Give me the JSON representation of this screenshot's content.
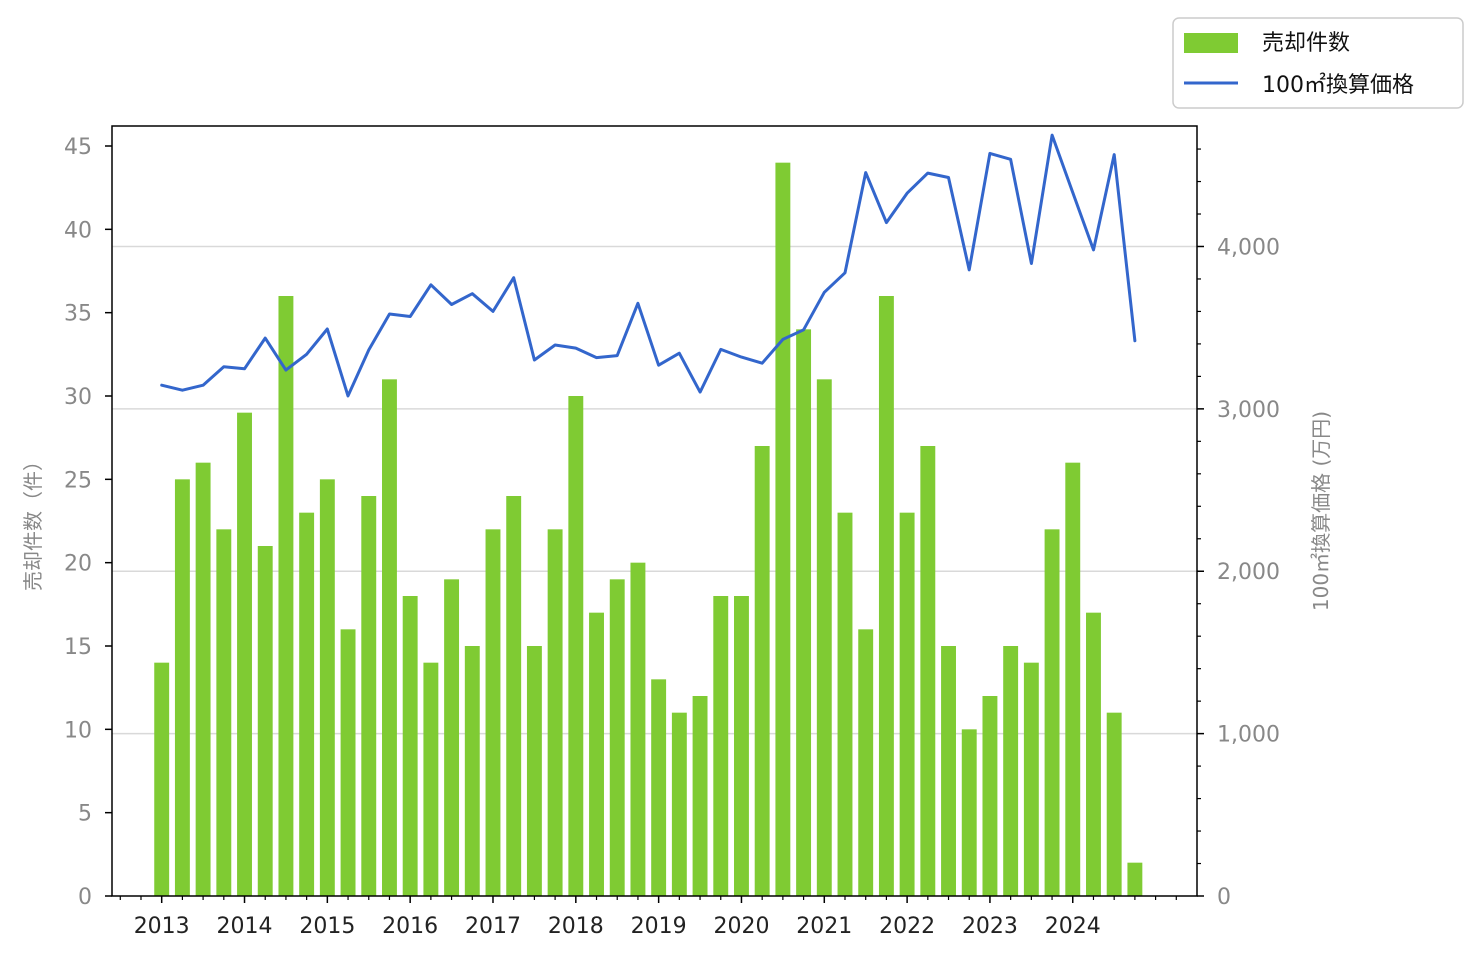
{
  "chart_data": {
    "type": "bar+line",
    "colors": {
      "bar": "#7fcb33",
      "line": "#3366cc",
      "grid": "#d9d9d9",
      "axis": "#000000",
      "tick_text": "#888888"
    },
    "grid": true,
    "legend_position": "top-right",
    "legend": [
      {
        "label": "売却件数",
        "kind": "bar"
      },
      {
        "label": "100㎡換算価格",
        "kind": "line"
      }
    ],
    "left_axis": {
      "label": "売却件数（件）",
      "ylim": [
        0,
        46.2
      ],
      "ticks": [
        0,
        5,
        10,
        15,
        20,
        25,
        30,
        35,
        40,
        45
      ],
      "tick_labels": [
        "0",
        "5",
        "10",
        "15",
        "20",
        "25",
        "30",
        "35",
        "40",
        "45"
      ]
    },
    "right_axis": {
      "label": "100㎡換算価格 (万円)",
      "ylim": [
        0,
        4742
      ],
      "ticks": [
        0,
        1000,
        2000,
        3000,
        4000
      ],
      "tick_labels": [
        "0",
        "1,000",
        "2,000",
        "3,000",
        "4,000"
      ]
    },
    "x_axis": {
      "xlim": [
        2012.4,
        2025.5
      ],
      "year_ticks": [
        2013,
        2014,
        2015,
        2016,
        2017,
        2018,
        2019,
        2020,
        2021,
        2022,
        2023,
        2024
      ],
      "year_labels": [
        "2013",
        "2014",
        "2015",
        "2016",
        "2017",
        "2018",
        "2019",
        "2020",
        "2021",
        "2022",
        "2023",
        "2024"
      ]
    },
    "series": [
      {
        "name": "売却件数",
        "type": "bar",
        "axis": "left",
        "x": [
          2013.0,
          2013.25,
          2013.5,
          2013.75,
          2014.0,
          2014.25,
          2014.5,
          2014.75,
          2015.0,
          2015.25,
          2015.5,
          2015.75,
          2016.0,
          2016.25,
          2016.5,
          2016.75,
          2017.0,
          2017.25,
          2017.5,
          2017.75,
          2018.0,
          2018.25,
          2018.5,
          2018.75,
          2019.0,
          2019.25,
          2019.5,
          2019.75,
          2020.0,
          2020.25,
          2020.5,
          2020.75,
          2021.0,
          2021.25,
          2021.5,
          2021.75,
          2022.0,
          2022.25,
          2022.5,
          2022.75,
          2023.0,
          2023.25,
          2023.5,
          2023.75,
          2024.0,
          2024.25,
          2024.5,
          2024.75
        ],
        "values": [
          14,
          25,
          26,
          22,
          29,
          21,
          36,
          23,
          25,
          16,
          24,
          31,
          18,
          14,
          19,
          15,
          22,
          24,
          15,
          22,
          30,
          17,
          19,
          20,
          13,
          11,
          12,
          18,
          18,
          27,
          44,
          34,
          31,
          23,
          16,
          36,
          23,
          27,
          15,
          10,
          12,
          15,
          14,
          22,
          26,
          17,
          11,
          2
        ]
      },
      {
        "name": "100㎡換算価格",
        "type": "line",
        "axis": "right",
        "x": [
          2013.0,
          2013.25,
          2013.5,
          2013.75,
          2014.0,
          2014.25,
          2014.5,
          2014.75,
          2015.0,
          2015.25,
          2015.5,
          2015.75,
          2016.0,
          2016.25,
          2016.5,
          2016.75,
          2017.0,
          2017.25,
          2017.5,
          2017.75,
          2018.0,
          2018.25,
          2018.5,
          2018.75,
          2019.0,
          2019.25,
          2019.5,
          2019.75,
          2020.0,
          2020.25,
          2020.5,
          2020.75,
          2021.0,
          2021.25,
          2021.5,
          2021.75,
          2022.0,
          2022.25,
          2022.5,
          2022.75,
          2023.0,
          2023.25,
          2023.5,
          2023.75,
          2024.0,
          2024.25,
          2024.5,
          2024.75
        ],
        "values": [
          3146,
          3115,
          3146,
          3259,
          3247,
          3436,
          3239,
          3336,
          3492,
          3080,
          3363,
          3584,
          3569,
          3764,
          3643,
          3709,
          3600,
          3808,
          3301,
          3393,
          3374,
          3316,
          3328,
          3650,
          3269,
          3343,
          3103,
          3366,
          3319,
          3281,
          3428,
          3487,
          3718,
          3838,
          4455,
          4147,
          4328,
          4452,
          4425,
          3856,
          4573,
          4537,
          3895,
          4686,
          4332,
          3979,
          4566,
          3419
        ]
      }
    ]
  }
}
